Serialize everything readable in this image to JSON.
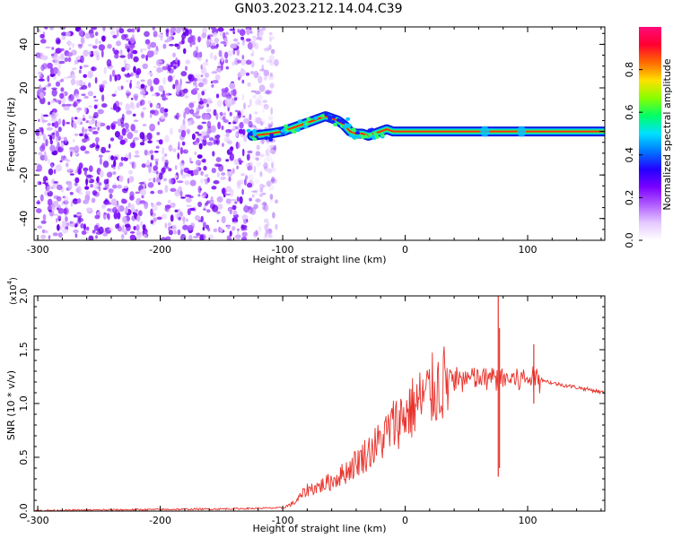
{
  "title": "GN03.2023.212.14.04.C39",
  "chart_data": [
    {
      "type": "heatmap",
      "xlabel": "Height of straight line (km)",
      "ylabel": "Frequency (Hz)",
      "xlim": [
        -303,
        163
      ],
      "ylim": [
        -50,
        48
      ],
      "x_ticks": [
        -300,
        -200,
        -100,
        0,
        100
      ],
      "y_ticks": [
        -40,
        -20,
        0,
        20,
        40
      ],
      "colorbar": {
        "label": "Normalized spectral amplitude",
        "range": [
          0,
          1
        ],
        "ticks": [
          "0.0",
          "0.2",
          "0.4",
          "0.6",
          "0.8"
        ],
        "colors": [
          "#ffffff",
          "#e4c8ff",
          "#b15cff",
          "#7a00ff",
          "#2200ff",
          "#0078ff",
          "#00e0ff",
          "#00ff66",
          "#88ff00",
          "#ffe000",
          "#ff6a00",
          "#ff0030",
          "#ff0a7a"
        ]
      },
      "noise_region_x": [
        -303,
        -108
      ],
      "signal_trace": {
        "x": [
          -125,
          -110,
          -100,
          -90,
          -80,
          -70,
          -65,
          -60,
          -55,
          -50,
          -45,
          -40,
          -35,
          -30,
          -25,
          -20,
          -15,
          -10,
          -5,
          0,
          20,
          40,
          60,
          80,
          100,
          120,
          140,
          163
        ],
        "y": [
          -2,
          -1,
          0,
          2,
          4,
          6,
          7,
          6,
          5,
          3,
          0,
          -1,
          -1,
          -2,
          -1,
          0,
          1,
          0,
          0,
          0,
          0,
          0,
          0,
          0,
          0,
          0,
          0,
          0
        ]
      },
      "residual_x": [
        65,
        95
      ]
    },
    {
      "type": "line",
      "xlabel": "Height of straight line (km)",
      "ylabel": "SNR (10 * v/v)",
      "multiplier": "(x10",
      "multiplier_exp": "4",
      "multiplier_close": ")",
      "xlim": [
        -303,
        163
      ],
      "ylim": [
        0,
        20000
      ],
      "x_ticks": [
        -300,
        -200,
        -100,
        0,
        100
      ],
      "y_ticks": [
        "0.0",
        "0.5",
        "1.0",
        "1.5",
        "2.0"
      ],
      "line_color": "#e8312a",
      "series": [
        {
          "x": [
            -303,
            -250,
            -200,
            -150,
            -100,
            -90,
            -80,
            -70,
            -60,
            -50,
            -40,
            -30,
            -20,
            -10,
            0,
            10,
            20,
            30,
            40,
            50,
            60,
            70,
            80,
            90,
            100,
            105,
            110,
            120,
            130,
            140,
            150,
            163
          ],
          "y": [
            50,
            100,
            150,
            200,
            300,
            800,
            2000,
            2300,
            2800,
            3500,
            4500,
            5500,
            6500,
            8000,
            9000,
            10000,
            11000,
            11800,
            12300,
            12300,
            12300,
            12300,
            12300,
            12300,
            12300,
            12300,
            12300,
            11900,
            11700,
            11500,
            11300,
            11000
          ]
        }
      ],
      "spikes": [
        {
          "x": 76,
          "ymin": 3200,
          "ymax": 20000
        },
        {
          "x": 77,
          "ymin": 4000,
          "ymax": 17000
        },
        {
          "x": 105,
          "ymin": 10000,
          "ymax": 15500
        }
      ]
    }
  ]
}
